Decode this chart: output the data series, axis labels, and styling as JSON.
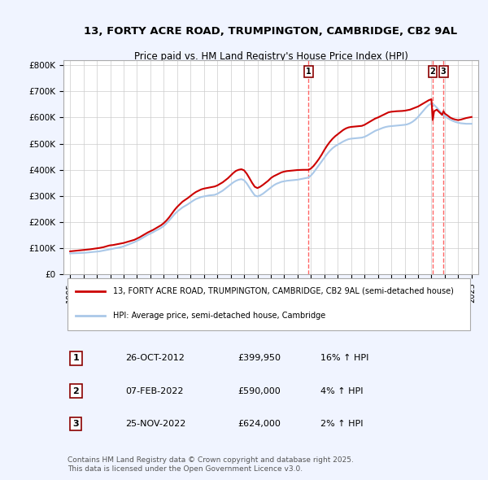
{
  "title": "13, FORTY ACRE ROAD, TRUMPINGTON, CAMBRIDGE, CB2 9AL",
  "subtitle": "Price paid vs. HM Land Registry's House Price Index (HPI)",
  "legend_line1": "13, FORTY ACRE ROAD, TRUMPINGTON, CAMBRIDGE, CB2 9AL (semi-detached house)",
  "legend_line2": "HPI: Average price, semi-detached house, Cambridge",
  "footnote": "Contains HM Land Registry data © Crown copyright and database right 2025.\nThis data is licensed under the Open Government Licence v3.0.",
  "transactions": [
    {
      "num": 1,
      "date": "26-OCT-2012",
      "price": "£399,950",
      "hpi": "16% ↑ HPI",
      "year": 2012.82
    },
    {
      "num": 2,
      "date": "07-FEB-2022",
      "price": "£590,000",
      "hpi": "4% ↑ HPI",
      "year": 2022.1
    },
    {
      "num": 3,
      "date": "25-NOV-2022",
      "price": "£624,000",
      "hpi": "2% ↑ HPI",
      "year": 2022.9
    }
  ],
  "prop_color": "#cc0000",
  "hpi_color": "#aac8e8",
  "vline_color": "#ff6666",
  "background_color": "#f0f4ff",
  "plot_bg": "#ffffff",
  "ylim": [
    0,
    820000
  ],
  "xlim_start": 1994.5,
  "xlim_end": 2025.5,
  "prop_data_x": [
    1995.0,
    1995.1,
    1995.2,
    1995.3,
    1995.4,
    1995.5,
    1995.6,
    1995.7,
    1995.8,
    1995.9,
    1996.0,
    1996.1,
    1996.2,
    1996.3,
    1996.4,
    1996.5,
    1996.6,
    1996.7,
    1996.8,
    1996.9,
    1997.0,
    1997.1,
    1997.2,
    1997.3,
    1997.4,
    1997.5,
    1997.6,
    1997.7,
    1997.8,
    1997.9,
    1998.0,
    1998.2,
    1998.4,
    1998.6,
    1998.8,
    1999.0,
    1999.2,
    1999.4,
    1999.6,
    1999.8,
    2000.0,
    2000.2,
    2000.4,
    2000.6,
    2000.8,
    2001.0,
    2001.2,
    2001.4,
    2001.6,
    2001.8,
    2002.0,
    2002.2,
    2002.4,
    2002.6,
    2002.8,
    2003.0,
    2003.2,
    2003.4,
    2003.6,
    2003.8,
    2004.0,
    2004.2,
    2004.4,
    2004.6,
    2004.8,
    2005.0,
    2005.2,
    2005.4,
    2005.6,
    2005.8,
    2006.0,
    2006.2,
    2006.4,
    2006.6,
    2006.8,
    2007.0,
    2007.2,
    2007.4,
    2007.6,
    2007.8,
    2008.0,
    2008.2,
    2008.4,
    2008.6,
    2008.8,
    2009.0,
    2009.2,
    2009.4,
    2009.6,
    2009.8,
    2010.0,
    2010.2,
    2010.4,
    2010.6,
    2010.8,
    2011.0,
    2011.2,
    2011.4,
    2011.6,
    2011.8,
    2012.0,
    2012.2,
    2012.4,
    2012.6,
    2012.8,
    2012.82,
    2013.0,
    2013.2,
    2013.4,
    2013.6,
    2013.8,
    2014.0,
    2014.2,
    2014.4,
    2014.6,
    2014.8,
    2015.0,
    2015.2,
    2015.4,
    2015.6,
    2015.8,
    2016.0,
    2016.2,
    2016.4,
    2016.6,
    2016.8,
    2017.0,
    2017.2,
    2017.4,
    2017.6,
    2017.8,
    2018.0,
    2018.2,
    2018.4,
    2018.6,
    2018.8,
    2019.0,
    2019.2,
    2019.4,
    2019.6,
    2019.8,
    2020.0,
    2020.2,
    2020.4,
    2020.6,
    2020.8,
    2021.0,
    2021.2,
    2021.4,
    2021.6,
    2021.8,
    2022.0,
    2022.1,
    2022.2,
    2022.4,
    2022.6,
    2022.8,
    2022.9,
    2023.0,
    2023.2,
    2023.4,
    2023.6,
    2023.8,
    2024.0,
    2024.2,
    2024.4,
    2024.6,
    2024.8,
    2025.0
  ],
  "prop_data_y": [
    88000,
    88500,
    89000,
    89500,
    90000,
    90500,
    91000,
    91500,
    92000,
    92500,
    93000,
    93500,
    94000,
    94500,
    95000,
    95800,
    96500,
    97200,
    98000,
    98800,
    99500,
    100200,
    101000,
    102000,
    103000,
    104000,
    105500,
    107000,
    108500,
    110000,
    111000,
    112000,
    114000,
    116000,
    118000,
    120000,
    123000,
    126000,
    129000,
    132000,
    137000,
    142000,
    148000,
    154000,
    160000,
    165000,
    170000,
    176000,
    182000,
    188000,
    196000,
    206000,
    218000,
    232000,
    246000,
    258000,
    268000,
    278000,
    285000,
    292000,
    300000,
    308000,
    315000,
    320000,
    325000,
    328000,
    330000,
    332000,
    334000,
    336000,
    340000,
    346000,
    352000,
    360000,
    368000,
    378000,
    388000,
    396000,
    400000,
    402000,
    398000,
    385000,
    368000,
    350000,
    335000,
    330000,
    335000,
    342000,
    350000,
    358000,
    368000,
    375000,
    380000,
    385000,
    390000,
    393000,
    395000,
    396000,
    397000,
    398000,
    399000,
    399500,
    399800,
    400000,
    399950,
    399950,
    405000,
    415000,
    428000,
    442000,
    458000,
    476000,
    492000,
    506000,
    518000,
    528000,
    536000,
    544000,
    552000,
    558000,
    562000,
    564000,
    565000,
    566000,
    567000,
    568000,
    572000,
    578000,
    584000,
    590000,
    596000,
    600000,
    605000,
    610000,
    615000,
    620000,
    622000,
    623000,
    624000,
    624500,
    625000,
    626000,
    628000,
    630000,
    634000,
    638000,
    642000,
    648000,
    654000,
    660000,
    666000,
    670000,
    590000,
    624000,
    630000,
    620000,
    610000,
    624000,
    615000,
    608000,
    600000,
    595000,
    592000,
    590000,
    592000,
    595000,
    598000,
    600000,
    602000
  ],
  "hpi_data_x": [
    1995.0,
    1995.1,
    1995.2,
    1995.3,
    1995.4,
    1995.5,
    1995.6,
    1995.7,
    1995.8,
    1995.9,
    1996.0,
    1996.1,
    1996.2,
    1996.3,
    1996.4,
    1996.5,
    1996.6,
    1996.7,
    1996.8,
    1996.9,
    1997.0,
    1997.2,
    1997.4,
    1997.6,
    1997.8,
    1998.0,
    1998.2,
    1998.4,
    1998.6,
    1998.8,
    1999.0,
    1999.2,
    1999.4,
    1999.6,
    1999.8,
    2000.0,
    2000.2,
    2000.4,
    2000.6,
    2000.8,
    2001.0,
    2001.2,
    2001.4,
    2001.6,
    2001.8,
    2002.0,
    2002.2,
    2002.4,
    2002.6,
    2002.8,
    2003.0,
    2003.2,
    2003.4,
    2003.6,
    2003.8,
    2004.0,
    2004.2,
    2004.4,
    2004.6,
    2004.8,
    2005.0,
    2005.2,
    2005.4,
    2005.6,
    2005.8,
    2006.0,
    2006.2,
    2006.4,
    2006.6,
    2006.8,
    2007.0,
    2007.2,
    2007.4,
    2007.6,
    2007.8,
    2008.0,
    2008.2,
    2008.4,
    2008.6,
    2008.8,
    2009.0,
    2009.2,
    2009.4,
    2009.6,
    2009.8,
    2010.0,
    2010.2,
    2010.4,
    2010.6,
    2010.8,
    2011.0,
    2011.2,
    2011.4,
    2011.6,
    2011.8,
    2012.0,
    2012.2,
    2012.4,
    2012.6,
    2012.8,
    2013.0,
    2013.2,
    2013.4,
    2013.6,
    2013.8,
    2014.0,
    2014.2,
    2014.4,
    2014.6,
    2014.8,
    2015.0,
    2015.2,
    2015.4,
    2015.6,
    2015.8,
    2016.0,
    2016.2,
    2016.4,
    2016.6,
    2016.8,
    2017.0,
    2017.2,
    2017.4,
    2017.6,
    2017.8,
    2018.0,
    2018.2,
    2018.4,
    2018.6,
    2018.8,
    2019.0,
    2019.2,
    2019.4,
    2019.6,
    2019.8,
    2020.0,
    2020.2,
    2020.4,
    2020.6,
    2020.8,
    2021.0,
    2021.2,
    2021.4,
    2021.6,
    2021.8,
    2022.0,
    2022.2,
    2022.4,
    2022.6,
    2022.8,
    2023.0,
    2023.2,
    2023.4,
    2023.6,
    2023.8,
    2024.0,
    2024.2,
    2024.4,
    2024.6,
    2024.8,
    2025.0
  ],
  "hpi_data_y": [
    80000,
    80200,
    80400,
    80600,
    80800,
    81000,
    81200,
    81400,
    81600,
    81800,
    82000,
    82500,
    83000,
    83500,
    84000,
    84500,
    85000,
    85500,
    86000,
    86500,
    87000,
    88000,
    90000,
    92000,
    94000,
    96000,
    98000,
    100000,
    102000,
    104000,
    107000,
    111000,
    115000,
    119000,
    123000,
    128000,
    133000,
    139000,
    145000,
    151000,
    156000,
    161000,
    167000,
    172000,
    178000,
    185000,
    195000,
    206000,
    218000,
    230000,
    240000,
    248000,
    256000,
    262000,
    268000,
    275000,
    282000,
    288000,
    292000,
    296000,
    298000,
    300000,
    302000,
    303000,
    304000,
    308000,
    314000,
    320000,
    328000,
    336000,
    344000,
    352000,
    358000,
    362000,
    364000,
    360000,
    348000,
    332000,
    316000,
    302000,
    298000,
    302000,
    308000,
    316000,
    324000,
    332000,
    340000,
    346000,
    350000,
    354000,
    356000,
    358000,
    359000,
    360000,
    361000,
    362000,
    364000,
    366000,
    368000,
    370000,
    378000,
    390000,
    404000,
    418000,
    432000,
    446000,
    460000,
    472000,
    482000,
    490000,
    496000,
    502000,
    508000,
    513000,
    517000,
    519000,
    520000,
    521000,
    522000,
    523000,
    526000,
    531000,
    537000,
    543000,
    549000,
    553000,
    557000,
    561000,
    564000,
    566000,
    567000,
    568000,
    569000,
    570000,
    571000,
    572000,
    574000,
    578000,
    584000,
    592000,
    602000,
    614000,
    626000,
    638000,
    648000,
    654000,
    648000,
    638000,
    626000,
    614000,
    605000,
    598000,
    592000,
    587000,
    583000,
    580000,
    578000,
    577000,
    576000,
    576000,
    576000
  ]
}
